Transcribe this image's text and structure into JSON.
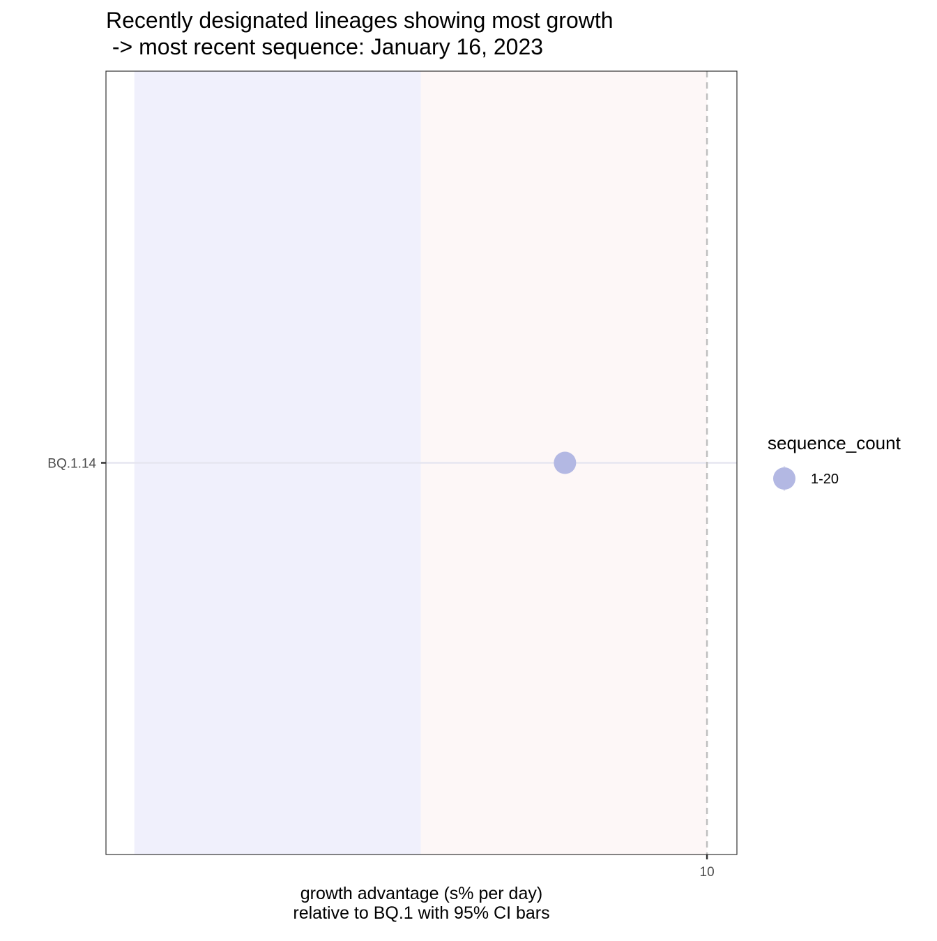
{
  "chart_data": {
    "type": "scatter",
    "title_lines": [
      "Recently designated lineages showing most growth",
      " -> most recent sequence: January 16, 2023"
    ],
    "xlabel_lines": [
      "growth advantage (s% per day)",
      "relative to  BQ.1  with 95% CI bars"
    ],
    "ylabel": "",
    "categories": [
      "BQ.1.14"
    ],
    "x_ticks": [
      10
    ],
    "x_tick_labels": [
      "10"
    ],
    "xlim": [
      -10.1,
      11
    ],
    "reference_line_x": 10,
    "bands": [
      {
        "from": -9.15,
        "to": 0.43,
        "color": "#f0f0fc"
      },
      {
        "from": 0.43,
        "to": 10,
        "color": "#fdf7f7"
      }
    ],
    "points": [
      {
        "lineage": "BQ.1.14",
        "x": 5.25,
        "sequence_count": "1-20",
        "color": "#b3b8e3"
      }
    ],
    "legend": {
      "title": "sequence_count",
      "position": "right",
      "items": [
        {
          "label": "1-20",
          "color": "#b3b8e3"
        }
      ]
    },
    "grid": false
  }
}
